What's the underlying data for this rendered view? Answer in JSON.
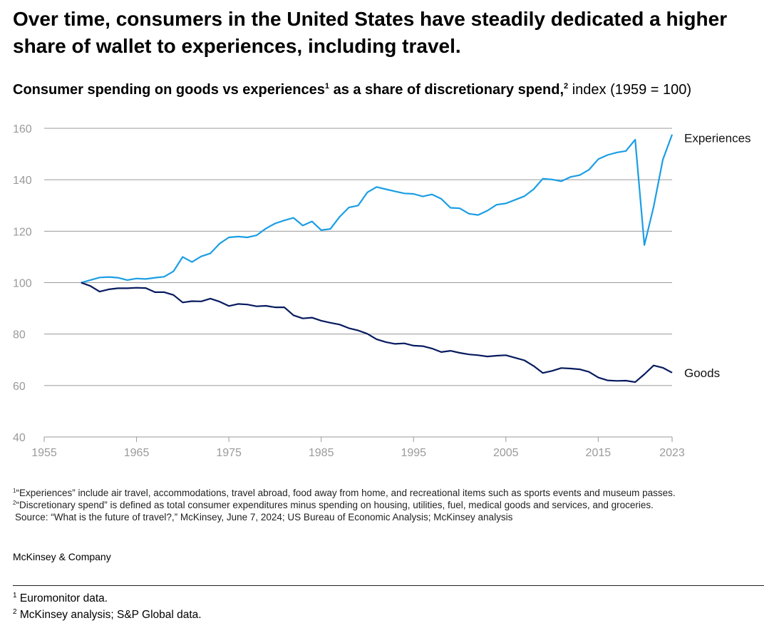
{
  "headline": "Over time, consumers in the United States have steadily dedicated a higher share of wallet to experiences, including travel.",
  "subtitle": {
    "bold_part_1": "Consumer spending on goods vs experiences",
    "sup_1": "1",
    "bold_part_2": " as a share of discretionary spend,",
    "sup_2": "2",
    "regular_part": " index (1959 = 100)"
  },
  "notes": [
    {
      "sup": "1",
      "text": "“Experiences” include air travel, accommodations, travel abroad, food away from home, and recreational items such as sports events and museum passes."
    },
    {
      "sup": "2",
      "text": "“Discretionary spend” is defined as total consumer expenditures minus spending on housing, utilities, fuel, medical goods and services, and groceries."
    }
  ],
  "source": "Source: “What is the future of travel?,” McKinsey, June 7, 2024; US Bureau of Economic Analysis; McKinsey analysis",
  "brand": "McKinsey & Company",
  "footnotes": [
    {
      "sup": "1",
      "text": "Euromonitor data."
    },
    {
      "sup": "2",
      "text": "McKinsey analysis; S&P Global data."
    }
  ],
  "colors": {
    "experiences": "#1b9ee4",
    "goods": "#061a5e",
    "grid": "#9a9a9a"
  },
  "chart_data": {
    "type": "line",
    "title": "Consumer spending on goods vs experiences as a share of discretionary spend, index (1959 = 100)",
    "xlabel": "",
    "ylabel": "",
    "xlim": [
      1955,
      2023
    ],
    "ylim": [
      40,
      160
    ],
    "x_ticks": [
      1955,
      1965,
      1975,
      1985,
      1995,
      2005,
      2015,
      2023
    ],
    "y_ticks": [
      40,
      60,
      80,
      100,
      120,
      140,
      160
    ],
    "grid": true,
    "x": [
      1959,
      1960,
      1961,
      1962,
      1963,
      1964,
      1965,
      1966,
      1967,
      1968,
      1969,
      1970,
      1971,
      1972,
      1973,
      1974,
      1975,
      1976,
      1977,
      1978,
      1979,
      1980,
      1981,
      1982,
      1983,
      1984,
      1985,
      1986,
      1987,
      1988,
      1989,
      1990,
      1991,
      1992,
      1993,
      1994,
      1995,
      1996,
      1997,
      1998,
      1999,
      2000,
      2001,
      2002,
      2003,
      2004,
      2005,
      2006,
      2007,
      2008,
      2009,
      2010,
      2011,
      2012,
      2013,
      2014,
      2015,
      2016,
      2017,
      2018,
      2019,
      2020,
      2021,
      2022,
      2023
    ],
    "series": [
      {
        "name": "Experiences",
        "values": [
          100,
          101,
          102,
          102.2,
          101.9,
          101,
          101.6,
          101.4,
          101.9,
          102.3,
          104.4,
          110,
          108,
          110.2,
          111.4,
          115.2,
          117.6,
          117.9,
          117.6,
          118.4,
          121,
          123,
          124.2,
          125.2,
          122.2,
          123.8,
          120.4,
          120.9,
          125.6,
          129.2,
          130,
          135.1,
          137.2,
          136.3,
          135.5,
          134.7,
          134.5,
          133.5,
          134.3,
          132.6,
          129.1,
          128.9,
          126.8,
          126.3,
          128,
          130.3,
          130.8,
          132.2,
          133.6,
          136.3,
          140.4,
          140.1,
          139.4,
          141.1,
          141.8,
          143.9,
          148,
          149.6,
          150.6,
          151.2,
          155.6,
          114.6,
          129.5,
          147.8,
          157.6
        ]
      },
      {
        "name": "Goods",
        "values": [
          100,
          98.7,
          96.5,
          97.4,
          97.8,
          97.8,
          98,
          97.9,
          96.3,
          96.3,
          95.2,
          92.3,
          92.8,
          92.7,
          93.8,
          92.6,
          90.9,
          91.7,
          91.5,
          90.8,
          91,
          90.4,
          90.4,
          87.3,
          86.1,
          86.4,
          85.2,
          84.4,
          83.7,
          82.3,
          81.4,
          80.1,
          78,
          76.9,
          76.2,
          76.4,
          75.5,
          75.3,
          74.4,
          73,
          73.5,
          72.7,
          72.1,
          71.8,
          71.3,
          71.6,
          71.8,
          70.8,
          69.8,
          67.6,
          64.9,
          65.7,
          66.8,
          66.6,
          66.3,
          65.3,
          63.1,
          62,
          61.8,
          61.9,
          61.3,
          64.4,
          67.8,
          66.9,
          65
        ]
      }
    ],
    "labels": {
      "Experiences": "Experiences",
      "Goods": "Goods"
    }
  }
}
